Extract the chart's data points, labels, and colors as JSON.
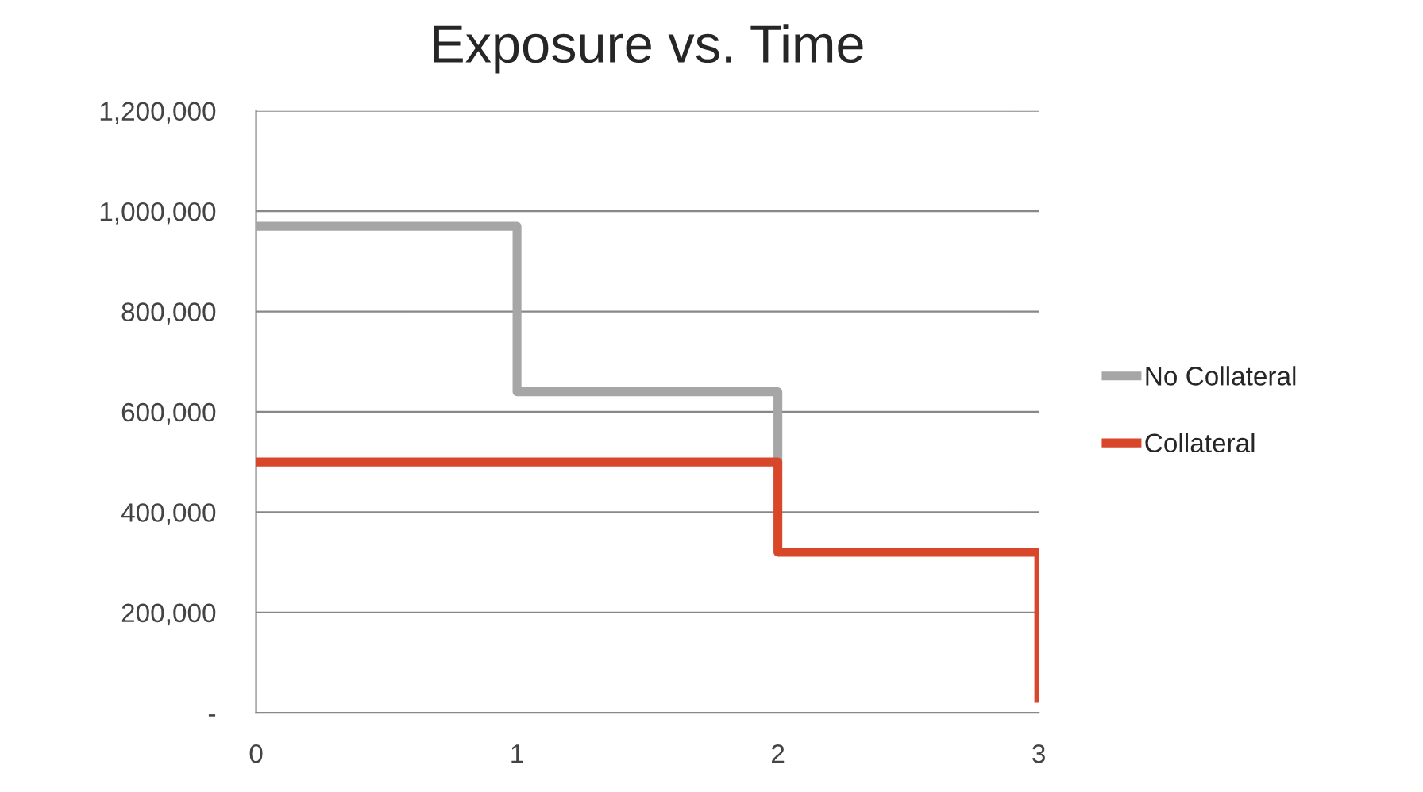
{
  "chart_data": {
    "type": "step",
    "title": "Exposure vs. Time",
    "series": [
      {
        "name": "No Collateral",
        "color": "#a6a6a6",
        "x": [
          0,
          1,
          2
        ],
        "values": [
          970000,
          640000,
          500000
        ]
      },
      {
        "name": "Collateral",
        "color": "#d9472b",
        "x": [
          0,
          2,
          3
        ],
        "values": [
          500000,
          320000,
          20000
        ]
      }
    ],
    "xlim": [
      0,
      3
    ],
    "xticks": [
      0,
      1,
      2,
      3
    ],
    "ylim": [
      0,
      1200000
    ],
    "yticks": [
      {
        "value": 0,
        "label": "-"
      },
      {
        "value": 200000,
        "label": "200,000"
      },
      {
        "value": 400000,
        "label": "400,000"
      },
      {
        "value": 600000,
        "label": "600,000"
      },
      {
        "value": 800000,
        "label": "800,000"
      },
      {
        "value": 1000000,
        "label": "1,000,000"
      },
      {
        "value": 1200000,
        "label": "1,200,000"
      }
    ],
    "grid": "y",
    "legend": "right",
    "line_style": "solid",
    "marker": "none"
  }
}
